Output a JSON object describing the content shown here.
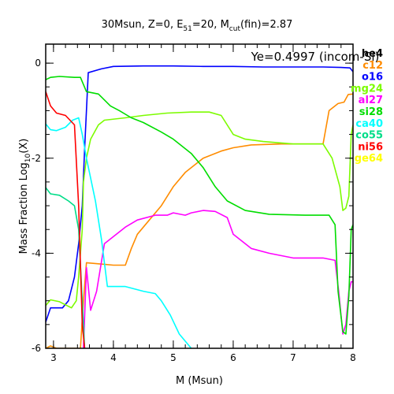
{
  "chart_data": {
    "type": "line",
    "title_main": "30Msun, Z=0, E",
    "title_e_sub": "51",
    "title_mid": "=20, M",
    "title_m_sub": "cut",
    "title_end": "(fin)=2.87",
    "annotation": "Ye=0.4997 (incom-Si)",
    "xlabel": "M (Msun)",
    "ylabel_main": "Mass Fraction Log",
    "ylabel_sub": "10",
    "ylabel_end": "(X)",
    "xlim": [
      2.87,
      8.0
    ],
    "ylim": [
      -6,
      0.4
    ],
    "xticks": [
      {
        "value": 3,
        "label": "3"
      },
      {
        "value": 4,
        "label": "4"
      },
      {
        "value": 5,
        "label": "5"
      },
      {
        "value": 6,
        "label": "6"
      },
      {
        "value": 7,
        "label": "7"
      },
      {
        "value": 8,
        "label": "8"
      }
    ],
    "yticks": [
      {
        "value": 0,
        "label": "0"
      },
      {
        "value": -2,
        "label": "-2"
      },
      {
        "value": -4,
        "label": "-4"
      },
      {
        "value": -6,
        "label": "-6"
      }
    ],
    "grid": false,
    "legend_position": "right-outside",
    "series": [
      {
        "name": "he4",
        "color": "#000000",
        "points": []
      },
      {
        "name": "c12",
        "color": "#ff8c00",
        "points": [
          [
            2.87,
            -6.0
          ],
          [
            2.95,
            -5.95
          ],
          [
            3.05,
            -6.0
          ],
          [
            3.45,
            -6.0
          ],
          [
            3.5,
            -5.0
          ],
          [
            3.55,
            -4.2
          ],
          [
            4.0,
            -4.25
          ],
          [
            4.2,
            -4.25
          ],
          [
            4.3,
            -3.9
          ],
          [
            4.4,
            -3.6
          ],
          [
            4.6,
            -3.3
          ],
          [
            4.8,
            -3.0
          ],
          [
            5.0,
            -2.6
          ],
          [
            5.2,
            -2.3
          ],
          [
            5.5,
            -2.0
          ],
          [
            5.8,
            -1.85
          ],
          [
            6.0,
            -1.78
          ],
          [
            6.3,
            -1.72
          ],
          [
            6.8,
            -1.7
          ],
          [
            7.5,
            -1.7
          ],
          [
            7.6,
            -1.0
          ],
          [
            7.75,
            -0.85
          ],
          [
            7.85,
            -0.82
          ],
          [
            7.92,
            -0.66
          ],
          [
            8.0,
            -0.65
          ]
        ]
      },
      {
        "name": "o16",
        "color": "#0000ff",
        "points": [
          [
            2.87,
            -5.45
          ],
          [
            2.95,
            -5.15
          ],
          [
            3.15,
            -5.15
          ],
          [
            3.25,
            -5.0
          ],
          [
            3.35,
            -4.5
          ],
          [
            3.42,
            -3.8
          ],
          [
            3.48,
            -3.0
          ],
          [
            3.52,
            -1.8
          ],
          [
            3.58,
            -0.2
          ],
          [
            3.8,
            -0.12
          ],
          [
            4.0,
            -0.07
          ],
          [
            4.5,
            -0.06
          ],
          [
            5.0,
            -0.06
          ],
          [
            5.5,
            -0.07
          ],
          [
            6.0,
            -0.07
          ],
          [
            6.5,
            -0.08
          ],
          [
            7.0,
            -0.08
          ],
          [
            7.5,
            -0.08
          ],
          [
            7.8,
            -0.09
          ],
          [
            7.95,
            -0.1
          ],
          [
            8.0,
            -0.18
          ]
        ]
      },
      {
        "name": "mg24",
        "color": "#7cfc00",
        "points": [
          [
            2.87,
            -5.1
          ],
          [
            2.95,
            -4.98
          ],
          [
            3.1,
            -5.02
          ],
          [
            3.3,
            -5.15
          ],
          [
            3.38,
            -5.0
          ],
          [
            3.42,
            -4.5
          ],
          [
            3.48,
            -3.5
          ],
          [
            3.5,
            -2.5
          ],
          [
            3.55,
            -2.0
          ],
          [
            3.62,
            -1.6
          ],
          [
            3.75,
            -1.3
          ],
          [
            3.85,
            -1.2
          ],
          [
            4.2,
            -1.15
          ],
          [
            4.5,
            -1.1
          ],
          [
            4.9,
            -1.05
          ],
          [
            5.3,
            -1.03
          ],
          [
            5.6,
            -1.03
          ],
          [
            5.8,
            -1.1
          ],
          [
            6.0,
            -1.5
          ],
          [
            6.2,
            -1.6
          ],
          [
            6.5,
            -1.65
          ],
          [
            7.0,
            -1.7
          ],
          [
            7.5,
            -1.7
          ],
          [
            7.65,
            -2.0
          ],
          [
            7.78,
            -2.6
          ],
          [
            7.83,
            -3.1
          ],
          [
            7.88,
            -3.05
          ],
          [
            7.93,
            -2.8
          ],
          [
            7.97,
            -1.5
          ],
          [
            8.0,
            -1.3
          ]
        ]
      },
      {
        "name": "al27",
        "color": "#ff00ff",
        "points": [
          [
            3.5,
            -6.0
          ],
          [
            3.55,
            -4.3
          ],
          [
            3.62,
            -5.2
          ],
          [
            3.72,
            -4.8
          ],
          [
            3.85,
            -3.8
          ],
          [
            4.0,
            -3.65
          ],
          [
            4.2,
            -3.45
          ],
          [
            4.4,
            -3.3
          ],
          [
            4.7,
            -3.2
          ],
          [
            4.9,
            -3.2
          ],
          [
            5.0,
            -3.15
          ],
          [
            5.2,
            -3.2
          ],
          [
            5.3,
            -3.15
          ],
          [
            5.5,
            -3.1
          ],
          [
            5.7,
            -3.12
          ],
          [
            5.9,
            -3.25
          ],
          [
            6.0,
            -3.6
          ],
          [
            6.3,
            -3.9
          ],
          [
            6.6,
            -4.0
          ],
          [
            7.0,
            -4.1
          ],
          [
            7.5,
            -4.1
          ],
          [
            7.7,
            -4.15
          ],
          [
            7.76,
            -4.8
          ],
          [
            7.83,
            -5.7
          ],
          [
            7.88,
            -5.5
          ],
          [
            7.93,
            -4.8
          ],
          [
            7.97,
            -4.6
          ],
          [
            8.0,
            -4.6
          ]
        ]
      },
      {
        "name": "si28",
        "color": "#00dd00",
        "points": [
          [
            2.87,
            -0.35
          ],
          [
            2.95,
            -0.3
          ],
          [
            3.1,
            -0.28
          ],
          [
            3.35,
            -0.3
          ],
          [
            3.45,
            -0.3
          ],
          [
            3.55,
            -0.6
          ],
          [
            3.75,
            -0.65
          ],
          [
            3.95,
            -0.9
          ],
          [
            4.1,
            -1.0
          ],
          [
            4.3,
            -1.15
          ],
          [
            4.5,
            -1.25
          ],
          [
            4.8,
            -1.45
          ],
          [
            5.0,
            -1.6
          ],
          [
            5.3,
            -1.9
          ],
          [
            5.5,
            -2.2
          ],
          [
            5.7,
            -2.6
          ],
          [
            5.9,
            -2.9
          ],
          [
            6.2,
            -3.1
          ],
          [
            6.6,
            -3.18
          ],
          [
            7.2,
            -3.2
          ],
          [
            7.6,
            -3.2
          ],
          [
            7.7,
            -3.4
          ],
          [
            7.75,
            -4.8
          ],
          [
            7.83,
            -5.65
          ],
          [
            7.88,
            -5.7
          ],
          [
            7.93,
            -4.9
          ],
          [
            7.97,
            -3.5
          ],
          [
            8.0,
            -3.4
          ]
        ]
      },
      {
        "name": "ca40",
        "color": "#00ffff",
        "points": [
          [
            2.87,
            -1.28
          ],
          [
            2.95,
            -1.4
          ],
          [
            3.05,
            -1.42
          ],
          [
            3.2,
            -1.35
          ],
          [
            3.32,
            -1.2
          ],
          [
            3.42,
            -1.15
          ],
          [
            3.48,
            -1.5
          ],
          [
            3.55,
            -2.0
          ],
          [
            3.7,
            -2.9
          ],
          [
            3.8,
            -3.7
          ],
          [
            3.9,
            -4.7
          ],
          [
            4.2,
            -4.7
          ],
          [
            4.35,
            -4.75
          ],
          [
            4.5,
            -4.8
          ],
          [
            4.7,
            -4.85
          ],
          [
            4.8,
            -5.0
          ],
          [
            4.95,
            -5.3
          ],
          [
            5.1,
            -5.7
          ],
          [
            5.3,
            -6.0
          ]
        ]
      },
      {
        "name": "co55",
        "color": "#00dd88",
        "points": [
          [
            2.87,
            -2.62
          ],
          [
            2.95,
            -2.75
          ],
          [
            3.1,
            -2.78
          ],
          [
            3.25,
            -2.9
          ],
          [
            3.35,
            -3.0
          ],
          [
            3.42,
            -3.5
          ],
          [
            3.48,
            -5.0
          ],
          [
            3.52,
            -6.0
          ]
        ]
      },
      {
        "name": "ni56",
        "color": "#ff0000",
        "points": [
          [
            2.87,
            -0.6
          ],
          [
            2.95,
            -0.9
          ],
          [
            3.05,
            -1.05
          ],
          [
            3.2,
            -1.1
          ],
          [
            3.35,
            -1.3
          ],
          [
            3.42,
            -3.0
          ],
          [
            3.48,
            -5.5
          ],
          [
            3.52,
            -6.0
          ]
        ]
      },
      {
        "name": "ge64",
        "color": "#ffff00",
        "points": []
      }
    ]
  }
}
